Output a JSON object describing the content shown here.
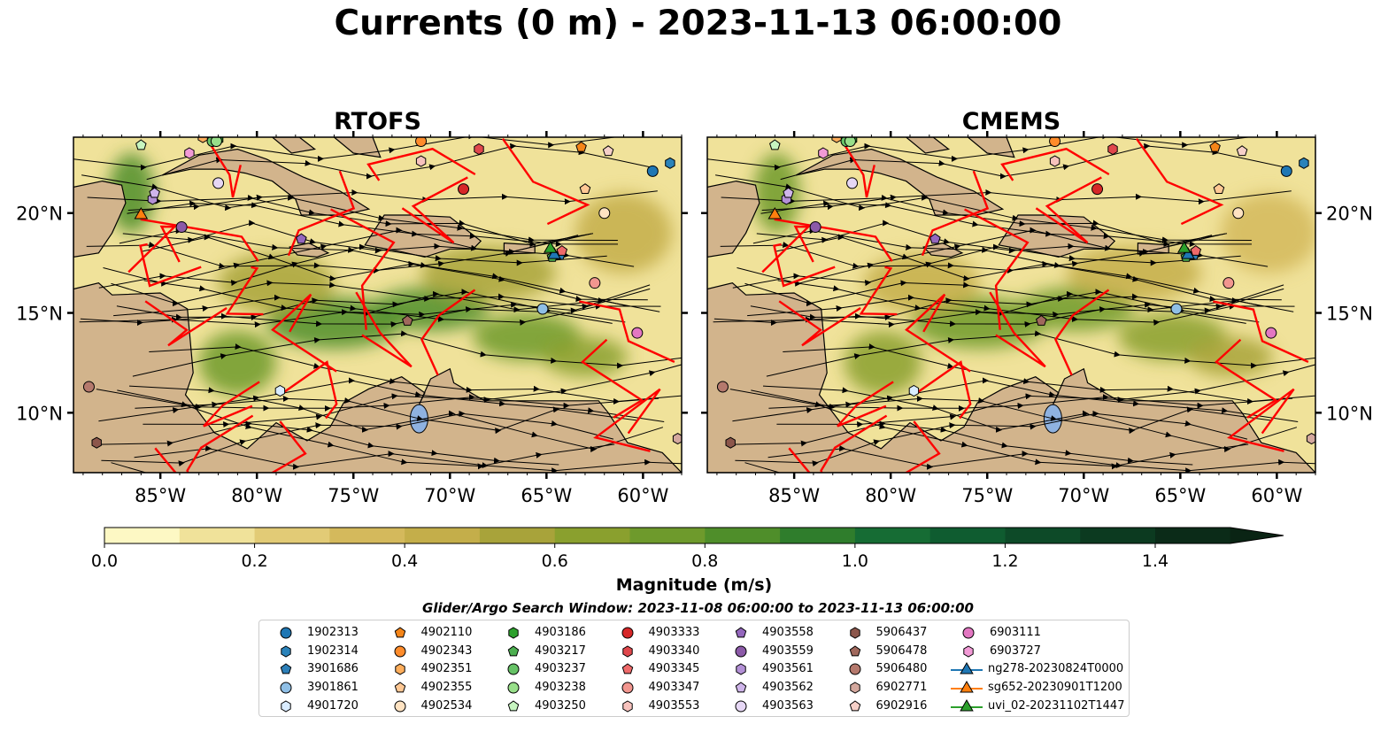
{
  "title": "Currents (0 m) - 2023-11-13 06:00:00",
  "panels": [
    {
      "title": "RTOFS"
    },
    {
      "title": "CMEMS"
    }
  ],
  "axes": {
    "x_ticks": [
      "85°W",
      "80°W",
      "75°W",
      "70°W",
      "65°W",
      "60°W"
    ],
    "x_tick_values": [
      -85,
      -80,
      -75,
      -70,
      -65,
      -60
    ],
    "y_ticks": [
      "20°N",
      "15°N",
      "10°N"
    ],
    "y_tick_values": [
      20,
      15,
      10
    ],
    "lon_range": [
      -89.5,
      -58.0
    ],
    "lat_range": [
      7.0,
      23.8
    ]
  },
  "chart_data": {
    "type": "heatmap",
    "title": "Currents (0 m) - 2023-11-13 06:00:00",
    "panels": [
      "RTOFS",
      "CMEMS"
    ],
    "xlim": [
      -89.5,
      -58.0
    ],
    "ylim": [
      7.0,
      23.8
    ],
    "colorbar": {
      "label": "Magnitude (m/s)",
      "range": [
        0.0,
        1.5
      ],
      "extend": "max",
      "ticks": [
        0.0,
        0.2,
        0.4,
        0.6,
        0.8,
        1.0,
        1.2,
        1.4
      ],
      "tick_labels": [
        "0.0",
        "0.2",
        "0.4",
        "0.6",
        "0.8",
        "1.0",
        "1.2",
        "1.4"
      ],
      "levels": [
        0.0,
        0.1,
        0.2,
        0.3,
        0.4,
        0.5,
        0.6,
        0.7,
        0.8,
        0.9,
        1.0,
        1.1,
        1.2,
        1.3,
        1.4,
        1.5
      ],
      "colors": [
        "#fdf8c4",
        "#f0e29a",
        "#e2cb76",
        "#d4b95c",
        "#c4ae4a",
        "#a8a33a",
        "#8aa02e",
        "#6e9a2c",
        "#4f8e2a",
        "#2f7d2c",
        "#166c34",
        "#0f5c30",
        "#0d4a28",
        "#0c3a20",
        "#0b2b18"
      ]
    },
    "markers": [
      {
        "id": "1902313",
        "marker": "circle",
        "color": "#1f77b4",
        "lon": -59.5,
        "lat": 22.1
      },
      {
        "id": "1902314",
        "marker": "hexagon",
        "color": "#2b83ba",
        "lon": -58.6,
        "lat": 22.5
      },
      {
        "id": "3901686",
        "marker": "pentagon",
        "color": "#2c7fb8",
        "lon": -64.3,
        "lat": 17.9
      },
      {
        "id": "3901861",
        "marker": "circle",
        "color": "#8fbfe6",
        "lon": -65.2,
        "lat": 15.2
      },
      {
        "id": "4901720",
        "marker": "hexagon",
        "color": "#d9ecff",
        "lon": -78.8,
        "lat": 11.1
      },
      {
        "id": "4902110",
        "marker": "pentagon",
        "color": "#f58518",
        "lon": -63.2,
        "lat": 23.3
      },
      {
        "id": "4902343",
        "marker": "circle",
        "color": "#ff8c2b",
        "lon": -71.5,
        "lat": 23.6
      },
      {
        "id": "4902351",
        "marker": "hexagon",
        "color": "#ffae5c",
        "lon": -82.8,
        "lat": 23.8
      },
      {
        "id": "4902355",
        "marker": "pentagon",
        "color": "#ffc894",
        "lon": -63.0,
        "lat": 21.2
      },
      {
        "id": "4902534",
        "marker": "circle",
        "color": "#ffe3c2",
        "lon": -62.0,
        "lat": 20.0
      },
      {
        "id": "4903186",
        "marker": "hexagon",
        "color": "#2ca02c",
        "lon": -82.0,
        "lat": 23.7
      },
      {
        "id": "4903217",
        "marker": "pentagon",
        "color": "#4caf50",
        "lon": -64.7,
        "lat": 17.8
      },
      {
        "id": "4903237",
        "marker": "circle",
        "color": "#66c266",
        "lon": -82.3,
        "lat": 23.6
      },
      {
        "id": "4903238",
        "marker": "circle",
        "color": "#98df8a",
        "lon": -82.1,
        "lat": 23.6
      },
      {
        "id": "4903250",
        "marker": "pentagon",
        "color": "#c7f5c0",
        "lon": -86.0,
        "lat": 23.4
      },
      {
        "id": "4903333",
        "marker": "circle",
        "color": "#d62728",
        "lon": -69.3,
        "lat": 21.2
      },
      {
        "id": "4903340",
        "marker": "hexagon",
        "color": "#e0474c",
        "lon": -68.5,
        "lat": 23.2
      },
      {
        "id": "4903345",
        "marker": "pentagon",
        "color": "#ef6a6a",
        "lon": -64.2,
        "lat": 18.1
      },
      {
        "id": "4903347",
        "marker": "circle",
        "color": "#f2968f",
        "lon": -62.5,
        "lat": 16.5
      },
      {
        "id": "4903553",
        "marker": "hexagon",
        "color": "#f7c2bd",
        "lon": -71.5,
        "lat": 22.6
      },
      {
        "id": "4903558",
        "marker": "pentagon",
        "color": "#9467bd",
        "lon": -77.7,
        "lat": 18.7
      },
      {
        "id": "4903559",
        "marker": "circle",
        "color": "#8c5aa8",
        "lon": -83.9,
        "lat": 19.3
      },
      {
        "id": "4903561",
        "marker": "hexagon",
        "color": "#b390d6",
        "lon": -85.4,
        "lat": 20.7
      },
      {
        "id": "4903562",
        "marker": "pentagon",
        "color": "#cfb5ea",
        "lon": -85.3,
        "lat": 21.0
      },
      {
        "id": "4903563",
        "marker": "circle",
        "color": "#e6d7f5",
        "lon": -82.0,
        "lat": 21.5
      },
      {
        "id": "5906437",
        "marker": "hexagon",
        "color": "#8c564b",
        "lon": -88.3,
        "lat": 8.5
      },
      {
        "id": "5906478",
        "marker": "pentagon",
        "color": "#a0685c",
        "lon": -72.2,
        "lat": 14.6
      },
      {
        "id": "5906480",
        "marker": "circle",
        "color": "#b5796d",
        "lon": -88.7,
        "lat": 11.3
      },
      {
        "id": "6902771",
        "marker": "hexagon",
        "color": "#d4a89e",
        "lon": -58.2,
        "lat": 8.7
      },
      {
        "id": "6902916",
        "marker": "pentagon",
        "color": "#f6d0c8",
        "lon": -61.8,
        "lat": 23.1
      },
      {
        "id": "6903111",
        "marker": "circle",
        "color": "#e377c2",
        "lon": -60.3,
        "lat": 14.0
      },
      {
        "id": "6903727",
        "marker": "hexagon",
        "color": "#f29ad6",
        "lon": -83.5,
        "lat": 23.0
      }
    ],
    "tracks": [
      {
        "id": "ng278-20230824T0000",
        "marker": "triangle",
        "color": "#1f77b4",
        "lon": -64.6,
        "lat": 17.9
      },
      {
        "id": "sg652-20230901T1200",
        "marker": "triangle",
        "color": "#ff7f0e",
        "lon": -86.0,
        "lat": 19.9
      },
      {
        "id": "uvi_02-20231102T1447",
        "marker": "triangle",
        "color": "#2ca02c",
        "lon": -64.8,
        "lat": 18.2
      }
    ]
  },
  "colorbar_label": "Magnitude (m/s)",
  "search_window": "Glider/Argo Search Window: 2023-11-08 06:00:00 to 2023-11-13 06:00:00",
  "map_colors": {
    "land": "#d2b48c",
    "lake": "#8fb2e0",
    "eez": "#ff0000",
    "stream": "#000000"
  }
}
